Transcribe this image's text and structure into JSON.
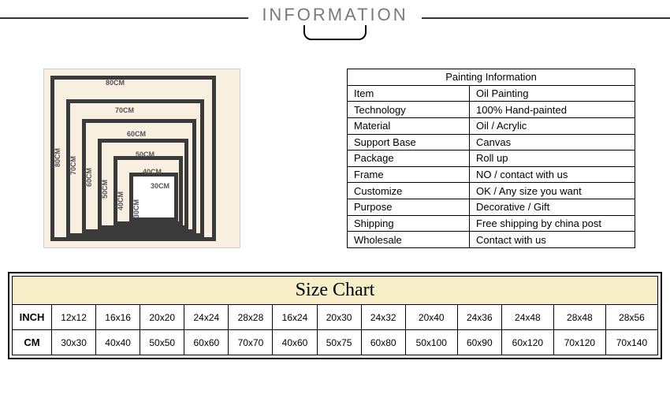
{
  "header": {
    "title": "INFORMATION"
  },
  "frameDiagram": {
    "bg": "#f7efe0",
    "sizes": [
      "80CM",
      "70CM",
      "60CM",
      "50CM",
      "40CM",
      "30CM"
    ]
  },
  "infoTable": {
    "header": "Painting Information",
    "rows": [
      {
        "k": "Item",
        "v": "Oil Painting"
      },
      {
        "k": "Technology",
        "v": "100% Hand-painted"
      },
      {
        "k": "Material",
        "v": "Oil / Acrylic"
      },
      {
        "k": "Support Base",
        "v": "Canvas"
      },
      {
        "k": "Package",
        "v": "Roll up"
      },
      {
        "k": "Frame",
        "v": "NO / contact with us"
      },
      {
        "k": "Customize",
        "v": "OK / Any size you want"
      },
      {
        "k": "Purpose",
        "v": "Decorative / Gift"
      },
      {
        "k": "Shipping",
        "v": "Free shipping by china post"
      },
      {
        "k": "Wholesale",
        "v": "Contact with us"
      }
    ]
  },
  "sizeChart": {
    "title": "Size Chart",
    "rowLabels": [
      "INCH",
      "CM"
    ],
    "inch": [
      "12x12",
      "16x16",
      "20x20",
      "24x24",
      "28x28",
      "16x24",
      "20x30",
      "24x32",
      "20x40",
      "24x36",
      "24x48",
      "28x48",
      "28x56"
    ],
    "cm": [
      "30x30",
      "40x40",
      "50x50",
      "60x60",
      "70x70",
      "40x60",
      "50x75",
      "60x80",
      "50x100",
      "60x90",
      "60x120",
      "70x120",
      "70x140"
    ]
  }
}
